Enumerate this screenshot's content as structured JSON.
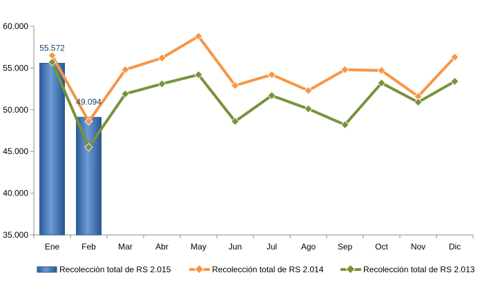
{
  "chart_data": {
    "type": "bar-line",
    "categories": [
      "Ene",
      "Feb",
      "Mar",
      "Abr",
      "May",
      "Jun",
      "Jul",
      "Ago",
      "Sep",
      "Oct",
      "Nov",
      "Dic"
    ],
    "ylim": [
      35000,
      60000
    ],
    "yticks": [
      35000,
      40000,
      45000,
      50000,
      55000,
      60000
    ],
    "ytick_labels": [
      "35.000",
      "40.000",
      "45.000",
      "50.000",
      "55.000",
      "60.000"
    ],
    "grid": false,
    "legend_position": "bottom",
    "series": [
      {
        "name": "Recolección total de RS 2.015",
        "type": "bar",
        "color": "#4f81bd",
        "values": [
          55572,
          49094,
          null,
          null,
          null,
          null,
          null,
          null,
          null,
          null,
          null,
          null
        ],
        "data_labels": [
          "55.572",
          "49.094",
          null,
          null,
          null,
          null,
          null,
          null,
          null,
          null,
          null,
          null
        ]
      },
      {
        "name": "Recolección total de RS 2.014",
        "type": "line",
        "color": "#f79646",
        "values": [
          56500,
          48600,
          54800,
          56200,
          58800,
          52900,
          54200,
          52300,
          54800,
          54700,
          51600,
          56300
        ]
      },
      {
        "name": "Recolección total de RS 2.013",
        "type": "line",
        "color": "#77933c",
        "values": [
          55700,
          45500,
          51900,
          53100,
          54200,
          48600,
          51700,
          50100,
          48200,
          53200,
          50900,
          53400
        ]
      }
    ]
  }
}
